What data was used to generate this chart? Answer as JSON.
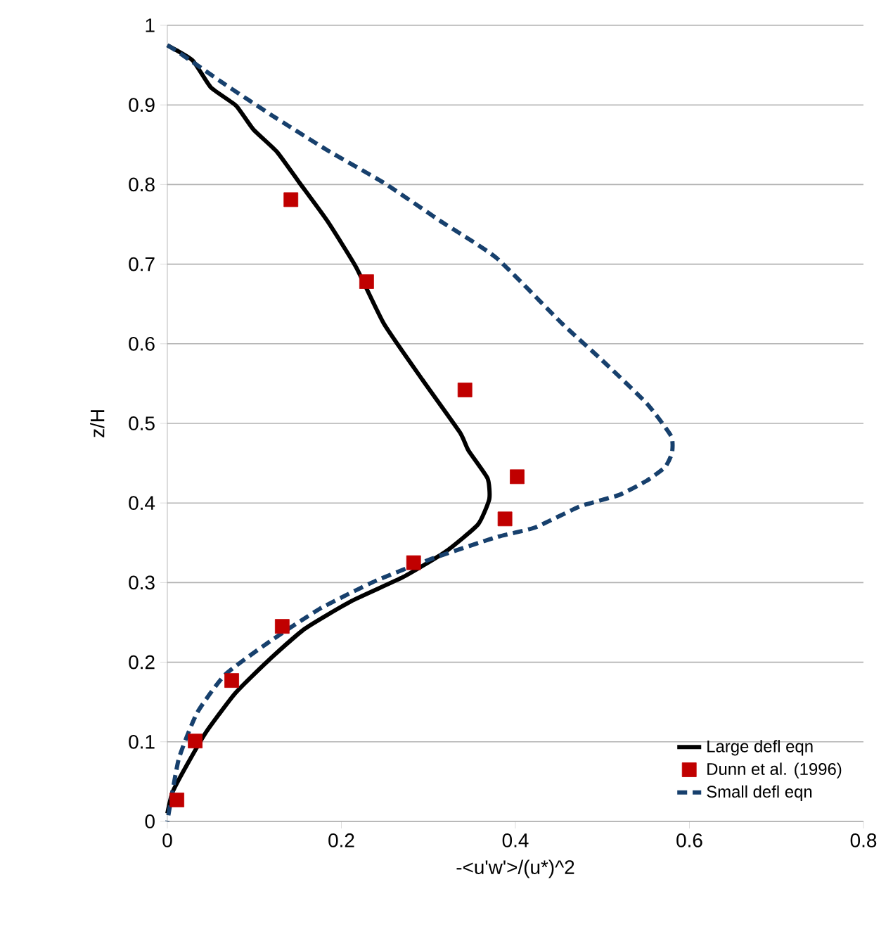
{
  "chart_data": {
    "type": "line",
    "xlabel": "-<u'w'>/(u*)^2",
    "ylabel": "z/H",
    "xlim": [
      0,
      0.8
    ],
    "ylim": [
      0,
      1
    ],
    "xticks": [
      0,
      0.2,
      0.4,
      0.6,
      0.8
    ],
    "yticks": [
      0,
      0.1,
      0.2,
      0.3,
      0.4,
      0.5,
      0.6,
      0.7,
      0.8,
      0.9,
      1
    ],
    "grid": "y",
    "legend": "bottom right",
    "series": [
      {
        "name": "Large defl eqn",
        "color": "#000000",
        "line_style": "solid",
        "marker": "none",
        "x": [
          0,
          0.029,
          0.05,
          0.079,
          0.099,
          0.126,
          0.152,
          0.184,
          0.217,
          0.249,
          0.293,
          0.336,
          0.346,
          0.368,
          0.37,
          0.357,
          0.32,
          0.271,
          0.212,
          0.158,
          0.115,
          0.078,
          0.045,
          0.023,
          0.006,
          0
        ],
        "values": [
          0.975,
          0.956,
          0.922,
          0.899,
          0.869,
          0.841,
          0.802,
          0.754,
          0.696,
          0.625,
          0.555,
          0.489,
          0.466,
          0.431,
          0.405,
          0.373,
          0.339,
          0.307,
          0.277,
          0.242,
          0.201,
          0.161,
          0.113,
          0.072,
          0.037,
          0.01
        ]
      },
      {
        "name": "Dunn et al. (1996)",
        "type": "scatter",
        "color": "#c00000",
        "marker": "square",
        "x": [
          0.142,
          0.229,
          0.342,
          0.402,
          0.388,
          0.283,
          0.132,
          0.074,
          0.032,
          0.011
        ],
        "values": [
          0.781,
          0.678,
          0.542,
          0.433,
          0.38,
          0.325,
          0.245,
          0.177,
          0.101,
          0.027
        ]
      },
      {
        "name": "Small defl eqn",
        "color": "#17406d",
        "line_style": "dashed",
        "marker": "none",
        "x": [
          0,
          0.013,
          0.066,
          0.12,
          0.184,
          0.249,
          0.314,
          0.378,
          0.454,
          0.498,
          0.551,
          0.579,
          0.58,
          0.572,
          0.551,
          0.519,
          0.475,
          0.422,
          0.378,
          0.304,
          0.239,
          0.175,
          0.115,
          0.066,
          0.034,
          0.013,
          0
        ],
        "values": [
          0.975,
          0.966,
          0.926,
          0.887,
          0.843,
          0.802,
          0.754,
          0.708,
          0.625,
          0.581,
          0.525,
          0.484,
          0.463,
          0.445,
          0.428,
          0.41,
          0.396,
          0.369,
          0.357,
          0.33,
          0.302,
          0.267,
          0.224,
          0.184,
          0.136,
          0.078,
          0
        ]
      }
    ]
  }
}
